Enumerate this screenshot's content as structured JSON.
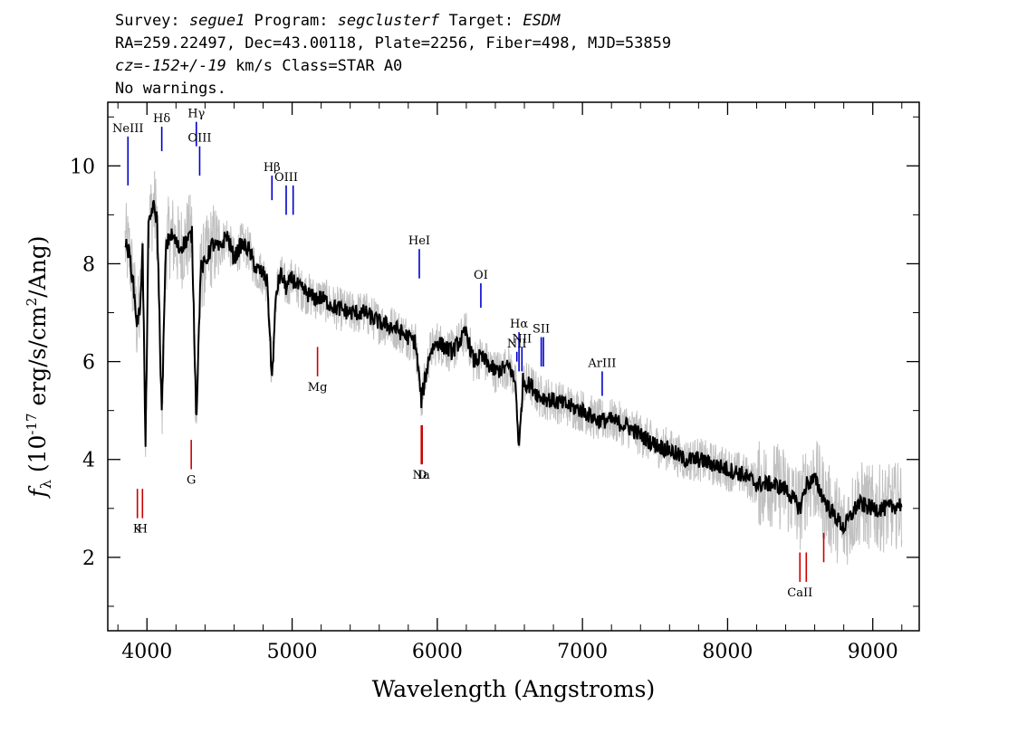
{
  "header": {
    "line1": {
      "survey_label": "Survey: ",
      "survey": "segue1",
      "program_label": " Program: ",
      "program": "segclusterf",
      "target_label": " Target: ",
      "target": "ESDM"
    },
    "line2": "RA=259.22497, Dec=43.00118, Plate=2256, Fiber=498, MJD=53859",
    "line3": {
      "cz": "cz=-152+/-19",
      "rest": " km/s Class=STAR A0"
    },
    "line4": "No warnings."
  },
  "chart_data": {
    "type": "line",
    "xlabel": "Wavelength (Angstroms)",
    "ylabel": {
      "f": "f",
      "sub": "λ",
      "pre": " (10",
      "exp": "-17",
      "post": " erg/s/cm",
      "exp2": "2",
      "tail": "/Ang)"
    },
    "xlim": [
      3730,
      9320
    ],
    "ylim": [
      0.5,
      11.3
    ],
    "xticks": [
      4000,
      5000,
      6000,
      7000,
      8000,
      9000
    ],
    "yticks": [
      2,
      4,
      6,
      8,
      10
    ],
    "grid": false,
    "colors": {
      "flux": "#000000",
      "error": "#c0c0c0",
      "emission": "#0000cc",
      "absorption": "#cc0000"
    },
    "smoothed_flux": {
      "x": [
        3850,
        3880,
        3905,
        3930,
        3950,
        3970,
        3990,
        4010,
        4040,
        4070,
        4102,
        4130,
        4160,
        4190,
        4220,
        4250,
        4280,
        4310,
        4340,
        4370,
        4400,
        4450,
        4500,
        4550,
        4600,
        4650,
        4700,
        4750,
        4800,
        4830,
        4861,
        4890,
        4920,
        4960,
        5000,
        5050,
        5100,
        5150,
        5200,
        5300,
        5400,
        5500,
        5600,
        5700,
        5800,
        5850,
        5890,
        5950,
        6000,
        6100,
        6200,
        6250,
        6300,
        6400,
        6500,
        6540,
        6563,
        6590,
        6650,
        6700,
        6800,
        6900,
        7000,
        7100,
        7200,
        7300,
        7400,
        7500,
        7600,
        7700,
        7800,
        7900,
        8000,
        8100,
        8200,
        8300,
        8400,
        8498,
        8542,
        8600,
        8662,
        8700,
        8800,
        8900,
        9000,
        9100,
        9200
      ],
      "y": [
        8.4,
        8.2,
        7.6,
        6.8,
        7.0,
        8.3,
        4.2,
        8.7,
        9.2,
        8.9,
        4.9,
        8.3,
        8.6,
        8.5,
        8.3,
        8.4,
        8.5,
        8.6,
        4.8,
        7.9,
        8.0,
        8.4,
        8.3,
        8.6,
        8.1,
        8.4,
        8.3,
        7.9,
        7.8,
        7.6,
        5.6,
        7.4,
        7.8,
        7.5,
        7.7,
        7.5,
        7.4,
        7.3,
        7.3,
        7.1,
        7.0,
        7.0,
        6.8,
        6.7,
        6.5,
        6.4,
        5.2,
        6.2,
        6.4,
        6.2,
        6.6,
        6.0,
        6.1,
        5.8,
        5.9,
        5.5,
        4.2,
        5.6,
        5.5,
        5.3,
        5.2,
        5.1,
        5.0,
        4.8,
        4.8,
        4.7,
        4.5,
        4.3,
        4.2,
        4.0,
        4.0,
        3.9,
        3.8,
        3.7,
        3.5,
        3.5,
        3.4,
        3.0,
        3.5,
        3.6,
        3.2,
        3.0,
        2.6,
        3.1,
        3.0,
        3.0,
        3.1
      ]
    },
    "emission_lines": [
      {
        "label": "NeIII",
        "x": 3869,
        "y1": 9.6,
        "y2": 10.6
      },
      {
        "label": "Hδ",
        "x": 4102,
        "y1": 10.3,
        "y2": 10.8
      },
      {
        "label": "Hγ",
        "x": 4340,
        "y1": 10.4,
        "y2": 10.9
      },
      {
        "label": "OIII",
        "x": 4363,
        "y1": 9.8,
        "y2": 10.4
      },
      {
        "label": "Hβ",
        "x": 4861,
        "y1": 9.3,
        "y2": 9.8
      },
      {
        "label": "OIII",
        "x": 4959,
        "y1": 9.0,
        "y2": 9.6
      },
      {
        "label": "",
        "x": 5007,
        "y1": 9.0,
        "y2": 9.6
      },
      {
        "label": "HeI",
        "x": 5876,
        "y1": 7.7,
        "y2": 8.3
      },
      {
        "label": "OI",
        "x": 6300,
        "y1": 7.1,
        "y2": 7.6
      },
      {
        "label": "NII",
        "x": 6548,
        "y1": 6.0,
        "y2": 6.2
      },
      {
        "label": "Hα",
        "x": 6563,
        "y1": 5.8,
        "y2": 6.6
      },
      {
        "label": "NII",
        "x": 6583,
        "y1": 5.8,
        "y2": 6.3
      },
      {
        "label": "SII",
        "x": 6716,
        "y1": 5.9,
        "y2": 6.5
      },
      {
        "label": "",
        "x": 6731,
        "y1": 5.9,
        "y2": 6.5
      },
      {
        "label": "ArIII",
        "x": 7136,
        "y1": 5.3,
        "y2": 5.8
      }
    ],
    "absorption_lines": [
      {
        "label": "K",
        "x": 3934,
        "y1": 2.8,
        "y2": 3.4
      },
      {
        "label": "H",
        "x": 3969,
        "y1": 2.8,
        "y2": 3.4
      },
      {
        "label": "G",
        "x": 4305,
        "y1": 3.8,
        "y2": 4.4
      },
      {
        "label": "Mg",
        "x": 5175,
        "y1": 5.7,
        "y2": 6.3
      },
      {
        "label": "Na",
        "x": 5890,
        "y1": 3.9,
        "y2": 4.7
      },
      {
        "label": "D",
        "x": 5896,
        "y1": 3.9,
        "y2": 4.7
      },
      {
        "label": "CaII",
        "x": 8498,
        "y1": 1.5,
        "y2": 2.1
      },
      {
        "label": "",
        "x": 8542,
        "y1": 1.5,
        "y2": 2.1
      },
      {
        "label": "",
        "x": 8662,
        "y1": 1.9,
        "y2": 2.5
      }
    ]
  }
}
